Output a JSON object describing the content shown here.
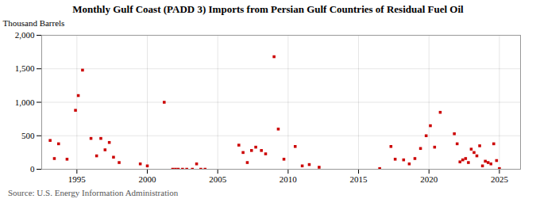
{
  "chart_data": {
    "type": "scatter",
    "title": "Monthly Gulf Coast (PADD 3) Imports from Persian Gulf Countries of Residual Fuel Oil",
    "ylabel": "Thousand Barrels",
    "source": "Source: U.S. Energy Information Administration",
    "color": "#cc0000",
    "marker": "square",
    "grid": true,
    "xlim": [
      1992.5,
      2026.5
    ],
    "xticks": [
      1995,
      2000,
      2005,
      2010,
      2015,
      2020,
      2025
    ],
    "ylim": [
      0,
      2000
    ],
    "yticks": [
      0,
      500,
      {
        "value": 1000,
        "label": "1,000"
      },
      {
        "value": 1500,
        "label": "1,500"
      },
      {
        "value": 2000,
        "label": "2,000"
      }
    ],
    "x": [
      1993.1,
      1993.4,
      1993.7,
      1994.3,
      1994.9,
      1995.1,
      1995.4,
      1996.0,
      1996.4,
      1996.7,
      1997.0,
      1997.3,
      1997.6,
      1998.0,
      1999.5,
      2000.0,
      2001.2,
      2001.8,
      2002.0,
      2002.2,
      2002.5,
      2002.8,
      2003.2,
      2003.5,
      2003.8,
      2004.1,
      2006.5,
      2006.8,
      2007.1,
      2007.4,
      2007.7,
      2008.1,
      2008.4,
      2009.0,
      2009.3,
      2009.7,
      2010.5,
      2011.0,
      2011.5,
      2012.2,
      2016.5,
      2017.3,
      2017.6,
      2018.2,
      2018.6,
      2019.0,
      2019.4,
      2019.8,
      2020.1,
      2020.4,
      2020.8,
      2021.8,
      2022.0,
      2022.2,
      2022.4,
      2022.6,
      2022.8,
      2023.0,
      2023.2,
      2023.4,
      2023.6,
      2023.8,
      2024.0,
      2024.2,
      2024.4,
      2024.6,
      2024.8,
      2025.0
    ],
    "values": [
      430,
      160,
      380,
      150,
      880,
      1100,
      1480,
      460,
      200,
      460,
      290,
      400,
      180,
      100,
      80,
      50,
      1000,
      0,
      0,
      0,
      0,
      0,
      0,
      80,
      0,
      0,
      360,
      250,
      100,
      280,
      330,
      280,
      230,
      1680,
      600,
      150,
      340,
      50,
      70,
      30,
      10,
      340,
      150,
      140,
      80,
      160,
      310,
      500,
      650,
      330,
      850,
      530,
      380,
      110,
      140,
      160,
      100,
      300,
      250,
      200,
      350,
      50,
      120,
      100,
      80,
      380,
      130,
      10
    ]
  }
}
